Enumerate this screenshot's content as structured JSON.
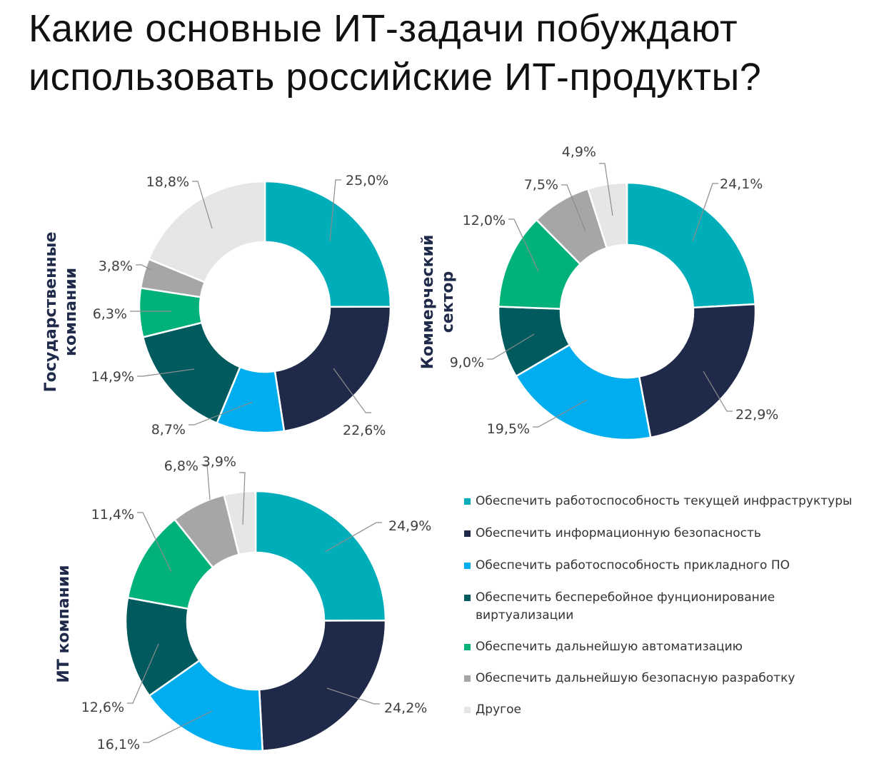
{
  "title": {
    "line1": "Какие основные ИТ-задачи побуждают",
    "line2": "использовать российские ИТ-продукты?"
  },
  "legend": [
    {
      "label": "Обеспечить работоспособность текущей инфраструктуры",
      "color": "#00aeba"
    },
    {
      "label": "Обеспечить информационную безопасность",
      "color": "#1f2a4a"
    },
    {
      "label": "Обеспечить работоспособность прикладного ПО",
      "color": "#00aeef"
    },
    {
      "label": "Обеспечить бесперебойное фунционирование виртуализации",
      "color": "#005a5e"
    },
    {
      "label": "Обеспечить дальнейшую автоматизацию",
      "color": "#00b27a"
    },
    {
      "label": "Обеспечить дальнейшую безопасную разработку",
      "color": "#a6a6a6"
    },
    {
      "label": "Другое",
      "color": "#e6e6e6"
    }
  ],
  "chart_data": [
    {
      "type": "pie",
      "segment_label": "Государственные компании",
      "segment_lines": [
        "Государственные",
        "компании"
      ],
      "categories": [
        "Обеспечить работоспособность текущей инфраструктуры",
        "Обеспечить информационную безопасность",
        "Обеспечить работоспособность прикладного ПО",
        "Обеспечить бесперебойное фунционирование виртуализации",
        "Обеспечить дальнейшую автоматизацию",
        "Обеспечить дальнейшую безопасную разработку",
        "Другое"
      ],
      "values": [
        25.0,
        22.6,
        8.7,
        14.9,
        6.3,
        3.8,
        18.8
      ],
      "labels": [
        "25,0%",
        "22,6%",
        "8,7%",
        "14,9%",
        "6,3%",
        "3,8%",
        "18,8%"
      ]
    },
    {
      "type": "pie",
      "segment_label": "Коммерческий сектор",
      "segment_lines": [
        "Коммерческий",
        "сектор"
      ],
      "categories": [
        "Обеспечить работоспособность текущей инфраструктуры",
        "Обеспечить информационную безопасность",
        "Обеспечить работоспособность прикладного ПО",
        "Обеспечить бесперебойное фунционирование виртуализации",
        "Обеспечить дальнейшую автоматизацию",
        "Обеспечить дальнейшую безопасную разработку",
        "Другое"
      ],
      "values": [
        24.1,
        22.9,
        19.5,
        9.0,
        12.0,
        7.5,
        4.9
      ],
      "labels": [
        "24,1%",
        "22,9%",
        "19,5%",
        "9,0%",
        "12,0%",
        "7,5%",
        "4,9%"
      ]
    },
    {
      "type": "pie",
      "segment_label": "ИТ компании",
      "segment_lines": [
        "ИТ компании"
      ],
      "categories": [
        "Обеспечить работоспособность текущей инфраструктуры",
        "Обеспечить информационную безопасность",
        "Обеспечить работоспособность прикладного ПО",
        "Обеспечить бесперебойное фунционирование виртуализации",
        "Обеспечить дальнейшую автоматизацию",
        "Обеспечить дальнейшую безопасную разработку",
        "Другое"
      ],
      "values": [
        24.9,
        24.2,
        16.1,
        12.6,
        11.4,
        6.8,
        3.9
      ],
      "labels": [
        "24,9%",
        "24,2%",
        "16,1%",
        "12,6%",
        "11,4%",
        "6,8%",
        "3,9%"
      ]
    }
  ]
}
